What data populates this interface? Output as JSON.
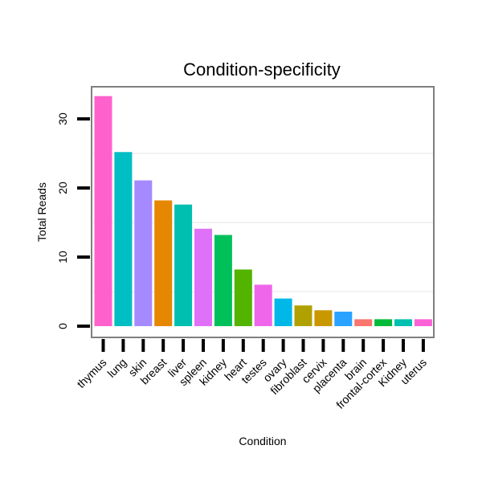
{
  "chart_data": {
    "type": "bar",
    "title": "Condition-specificity",
    "xlabel": "Condition",
    "ylabel": "Total Reads",
    "ylim": [
      0,
      35
    ],
    "yticks": [
      0,
      10,
      20,
      30
    ],
    "grid": true,
    "categories": [
      "thymus",
      "lung",
      "skin",
      "breast",
      "liver",
      "spleen",
      "kidney",
      "heart",
      "testes",
      "ovary",
      "fibroblast",
      "cervix",
      "placenta",
      "brain",
      "frontal-cortex",
      "Kidney",
      "uterus"
    ],
    "values": [
      33.3,
      25.2,
      21.1,
      18.2,
      17.6,
      14.1,
      13.2,
      8.2,
      6.0,
      4.0,
      3.0,
      2.3,
      2.1,
      1.0,
      1.0,
      1.0,
      1.0
    ],
    "colors": [
      "#FF61CC",
      "#00BFC4",
      "#A58AFF",
      "#E58700",
      "#00BFB0",
      "#DF70F8",
      "#00C05A",
      "#53B400",
      "#F066EA",
      "#00B8E7",
      "#B0A100",
      "#C99800",
      "#29A3FF",
      "#F8766D",
      "#00BA38",
      "#00C0AF",
      "#FB61D7"
    ]
  }
}
